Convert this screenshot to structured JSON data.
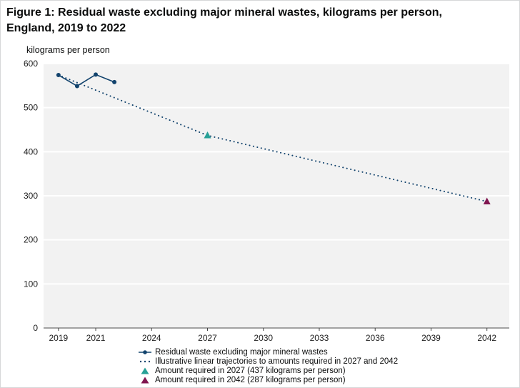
{
  "title": {
    "line1": "Figure 1: Residual waste excluding major mineral wastes, kilograms per person,",
    "line2": "England, 2019 to 2022"
  },
  "chart_data": {
    "type": "line",
    "y_axis_label": "kilograms per person",
    "xlabel": "",
    "ylabel": "kilograms per person",
    "ylim": [
      0,
      600
    ],
    "yticks": [
      0,
      100,
      200,
      300,
      400,
      500,
      600
    ],
    "xlim": [
      2018.2,
      2043.2
    ],
    "xticks": [
      2019,
      2021,
      2024,
      2027,
      2030,
      2033,
      2036,
      2039,
      2042
    ],
    "grid": "horizontal-white-on-grey-panel",
    "panel_color": "#f2f2f2",
    "gridline_color": "#ffffff",
    "axis_color": "#454545",
    "tick_label_color": "#1d1d1d",
    "legend_position": "bottom-left",
    "series": [
      {
        "name": "Residual waste excluding major mineral wastes",
        "type": "line",
        "color": "#12436D",
        "x": [
          2019,
          2020,
          2021,
          2022
        ],
        "values": [
          574,
          549,
          575,
          558
        ]
      },
      {
        "name": "Illustrative linear trajectories to amounts required in 2027 and 2042",
        "type": "dotted",
        "color": "#12436D",
        "x": [
          2019,
          2027,
          2042
        ],
        "values": [
          574,
          437,
          287
        ]
      },
      {
        "name": "Amount required in 2027 (437 kilograms per person)",
        "type": "triangle",
        "color": "#28A197",
        "x": [
          2027
        ],
        "values": [
          437
        ]
      },
      {
        "name": "Amount required in 2042 (287 kilograms per person)",
        "type": "triangle",
        "color": "#801650",
        "x": [
          2042
        ],
        "values": [
          287
        ]
      }
    ]
  }
}
